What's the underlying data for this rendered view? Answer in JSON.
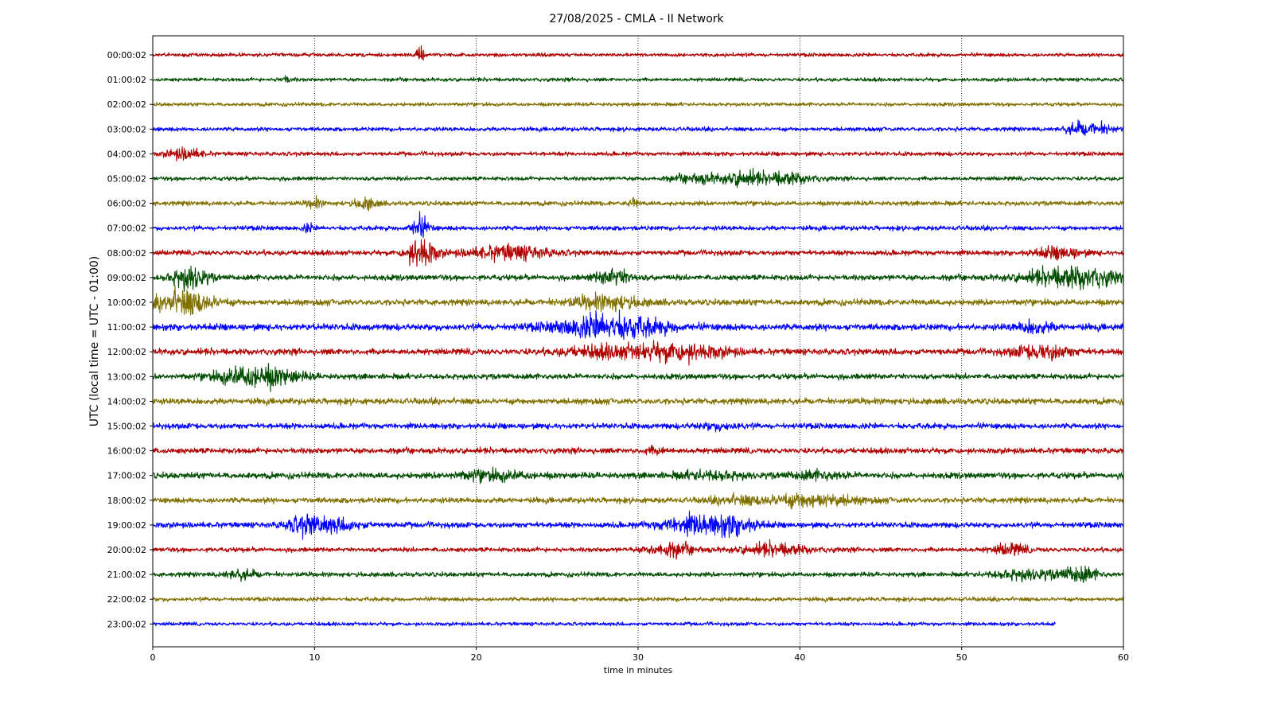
{
  "chart_data": {
    "type": "line",
    "title": "27/08/2025 - CMLA - II Network",
    "xlabel": "time in minutes",
    "ylabel": "UTC (local time = UTC - 01:00)",
    "xlim": [
      0,
      60
    ],
    "x_ticks": [
      "0",
      "10",
      "20",
      "30",
      "40",
      "50",
      "60"
    ],
    "grid": "vertical dotted",
    "series_colors": [
      "#b00000",
      "#004d00",
      "#807000",
      "#0000ff"
    ],
    "series": [
      {
        "name": "00:00:02",
        "color": "#b00000",
        "end_minute": 60,
        "amplitude": 0.35,
        "events": [
          {
            "minute": 16.5,
            "amp": 3.2,
            "dur": 0.3
          }
        ]
      },
      {
        "name": "01:00:02",
        "color": "#004d00",
        "end_minute": 60,
        "amplitude": 0.35,
        "events": [
          {
            "minute": 8.2,
            "amp": 0.5,
            "dur": 0.6
          }
        ]
      },
      {
        "name": "02:00:02",
        "color": "#807000",
        "end_minute": 60,
        "amplitude": 0.35,
        "events": []
      },
      {
        "name": "03:00:02",
        "color": "#0000ff",
        "end_minute": 60,
        "amplitude": 0.4,
        "events": [
          {
            "minute": 57.3,
            "amp": 1.2,
            "dur": 1.2
          },
          {
            "minute": 58.7,
            "amp": 0.8,
            "dur": 1.2
          }
        ]
      },
      {
        "name": "04:00:02",
        "color": "#b00000",
        "end_minute": 60,
        "amplitude": 0.4,
        "events": [
          {
            "minute": 2.0,
            "amp": 1.0,
            "dur": 1.5
          }
        ]
      },
      {
        "name": "05:00:02",
        "color": "#004d00",
        "end_minute": 60,
        "amplitude": 0.4,
        "events": [
          {
            "minute": 34.0,
            "amp": 0.8,
            "dur": 2.5
          },
          {
            "minute": 36.5,
            "amp": 1.2,
            "dur": 1.2
          },
          {
            "minute": 39.0,
            "amp": 1.1,
            "dur": 2.5
          }
        ]
      },
      {
        "name": "06:00:02",
        "color": "#807000",
        "end_minute": 60,
        "amplitude": 0.45,
        "events": [
          {
            "minute": 10.0,
            "amp": 0.9,
            "dur": 0.6
          },
          {
            "minute": 13.2,
            "amp": 1.0,
            "dur": 1.0
          },
          {
            "minute": 29.7,
            "amp": 0.7,
            "dur": 0.5
          }
        ]
      },
      {
        "name": "07:00:02",
        "color": "#0000ff",
        "end_minute": 60,
        "amplitude": 0.45,
        "events": [
          {
            "minute": 9.6,
            "amp": 0.8,
            "dur": 0.4
          },
          {
            "minute": 16.5,
            "amp": 2.0,
            "dur": 0.8
          }
        ]
      },
      {
        "name": "08:00:02",
        "color": "#b00000",
        "end_minute": 60,
        "amplitude": 0.5,
        "events": [
          {
            "minute": 16.6,
            "amp": 3.0,
            "dur": 1.2
          },
          {
            "minute": 22.0,
            "amp": 1.3,
            "dur": 3.5
          },
          {
            "minute": 56.0,
            "amp": 1.0,
            "dur": 2.0
          }
        ]
      },
      {
        "name": "09:00:02",
        "color": "#004d00",
        "end_minute": 60,
        "amplitude": 0.55,
        "events": [
          {
            "minute": 2.3,
            "amp": 2.2,
            "dur": 1.5
          },
          {
            "minute": 28.5,
            "amp": 1.6,
            "dur": 1.5
          },
          {
            "minute": 57.0,
            "amp": 1.9,
            "dur": 4.0
          }
        ]
      },
      {
        "name": "10:00:02",
        "color": "#807000",
        "end_minute": 60,
        "amplitude": 0.6,
        "events": [
          {
            "minute": 2.0,
            "amp": 2.3,
            "dur": 2.5
          },
          {
            "minute": 28.0,
            "amp": 1.2,
            "dur": 3.0
          }
        ]
      },
      {
        "name": "11:00:02",
        "color": "#0000ff",
        "end_minute": 60,
        "amplitude": 0.65,
        "events": [
          {
            "minute": 28.3,
            "amp": 2.3,
            "dur": 4.5
          },
          {
            "minute": 54.5,
            "amp": 1.0,
            "dur": 1.5
          }
        ]
      },
      {
        "name": "12:00:02",
        "color": "#b00000",
        "end_minute": 60,
        "amplitude": 0.6,
        "events": [
          {
            "minute": 28.0,
            "amp": 0.9,
            "dur": 4.0
          },
          {
            "minute": 32.5,
            "amp": 1.5,
            "dur": 4.0
          },
          {
            "minute": 55.0,
            "amp": 1.3,
            "dur": 2.5
          }
        ]
      },
      {
        "name": "13:00:02",
        "color": "#004d00",
        "end_minute": 60,
        "amplitude": 0.55,
        "events": [
          {
            "minute": 5.5,
            "amp": 1.4,
            "dur": 2.5
          },
          {
            "minute": 7.5,
            "amp": 1.3,
            "dur": 2.5
          }
        ]
      },
      {
        "name": "14:00:02",
        "color": "#807000",
        "end_minute": 60,
        "amplitude": 0.6,
        "events": []
      },
      {
        "name": "15:00:02",
        "color": "#0000ff",
        "end_minute": 60,
        "amplitude": 0.55,
        "events": [
          {
            "minute": 35.0,
            "amp": 0.5,
            "dur": 2.0
          }
        ]
      },
      {
        "name": "16:00:02",
        "color": "#b00000",
        "end_minute": 60,
        "amplitude": 0.55,
        "events": [
          {
            "minute": 31.0,
            "amp": 0.5,
            "dur": 1.0
          }
        ]
      },
      {
        "name": "17:00:02",
        "color": "#004d00",
        "end_minute": 60,
        "amplitude": 0.6,
        "events": [
          {
            "minute": 21.0,
            "amp": 0.8,
            "dur": 3.0
          },
          {
            "minute": 34.5,
            "amp": 0.7,
            "dur": 3.0
          },
          {
            "minute": 41.0,
            "amp": 0.6,
            "dur": 2.5
          }
        ]
      },
      {
        "name": "18:00:02",
        "color": "#807000",
        "end_minute": 60,
        "amplitude": 0.55,
        "events": [
          {
            "minute": 40.5,
            "amp": 1.2,
            "dur": 4.0
          },
          {
            "minute": 36.0,
            "amp": 0.6,
            "dur": 2.0
          }
        ]
      },
      {
        "name": "19:00:02",
        "color": "#0000ff",
        "end_minute": 60,
        "amplitude": 0.55,
        "events": [
          {
            "minute": 9.3,
            "amp": 1.3,
            "dur": 1.5
          },
          {
            "minute": 11.0,
            "amp": 1.1,
            "dur": 2.5
          },
          {
            "minute": 33.5,
            "amp": 1.6,
            "dur": 3.0
          },
          {
            "minute": 36.0,
            "amp": 1.3,
            "dur": 2.0
          }
        ]
      },
      {
        "name": "20:00:02",
        "color": "#b00000",
        "end_minute": 60,
        "amplitude": 0.45,
        "events": [
          {
            "minute": 32.0,
            "amp": 1.2,
            "dur": 2.0
          },
          {
            "minute": 38.5,
            "amp": 1.0,
            "dur": 3.0
          },
          {
            "minute": 53.0,
            "amp": 1.0,
            "dur": 1.5
          }
        ]
      },
      {
        "name": "21:00:02",
        "color": "#004d00",
        "end_minute": 60,
        "amplitude": 0.45,
        "events": [
          {
            "minute": 5.5,
            "amp": 0.8,
            "dur": 1.5
          },
          {
            "minute": 54.0,
            "amp": 0.9,
            "dur": 3.0
          },
          {
            "minute": 57.3,
            "amp": 1.4,
            "dur": 1.5
          }
        ]
      },
      {
        "name": "22:00:02",
        "color": "#807000",
        "end_minute": 60,
        "amplitude": 0.4,
        "events": []
      },
      {
        "name": "23:00:02",
        "color": "#0000ff",
        "end_minute": 55.8,
        "amplitude": 0.35,
        "events": []
      }
    ]
  }
}
